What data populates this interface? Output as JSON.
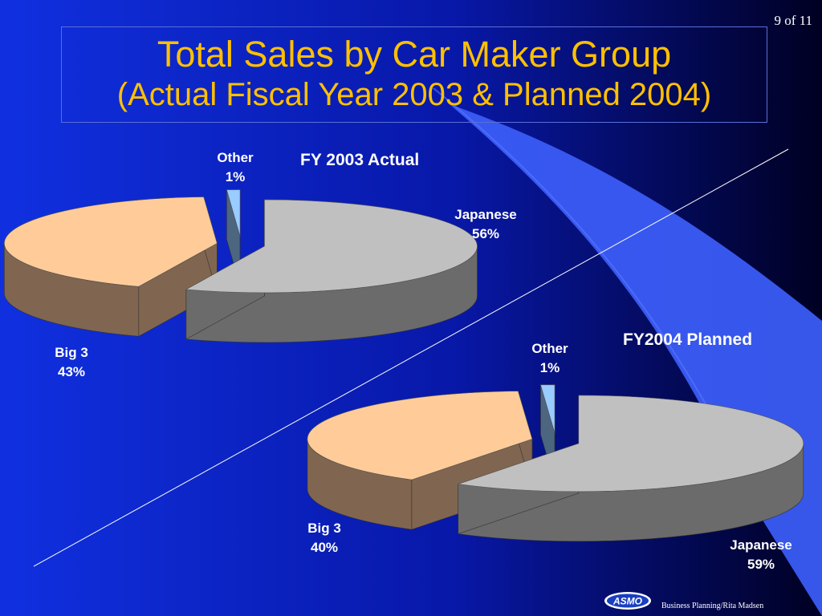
{
  "slide": {
    "page_number": "9 of 11",
    "title_line1": "Total Sales by Car Maker Group",
    "title_line2": "(Actual Fiscal Year 2003 & Planned 2004)",
    "footer": "Business Planning/Rita Madsen",
    "logo_text": "ASMO"
  },
  "colors": {
    "background_left": "#1030e0",
    "background_right": "#000033",
    "title": "#ffc000",
    "japanese_top": "#c0c0c0",
    "japanese_side": "#6b6b6b",
    "big3_top": "#ffcc99",
    "big3_side": "#806650",
    "other_top": "#99ccff",
    "other_side": "#4d6680"
  },
  "chart_data": [
    {
      "type": "pie",
      "title": "FY 2003 Actual",
      "categories": [
        "Japanese",
        "Big 3",
        "Other"
      ],
      "values": [
        56,
        43,
        1
      ],
      "labels": [
        {
          "category": "Japanese",
          "value": "56%"
        },
        {
          "category": "Big 3",
          "value": "43%"
        },
        {
          "category": "Other",
          "value": "1%"
        }
      ]
    },
    {
      "type": "pie",
      "title": "FY2004 Planned",
      "categories": [
        "Japanese",
        "Big 3",
        "Other"
      ],
      "values": [
        59,
        40,
        1
      ],
      "labels": [
        {
          "category": "Japanese",
          "value": "59%"
        },
        {
          "category": "Big 3",
          "value": "40%"
        },
        {
          "category": "Other",
          "value": "1%"
        }
      ]
    }
  ]
}
